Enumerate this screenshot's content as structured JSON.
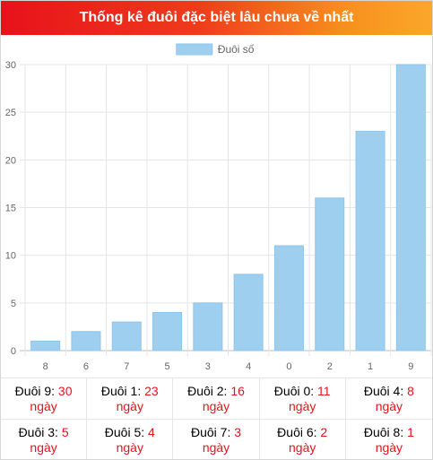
{
  "header": {
    "title": "Thống kê đuôi đặc biệt lâu chưa về nhất"
  },
  "chart_data": {
    "type": "bar",
    "categories": [
      "8",
      "6",
      "7",
      "5",
      "3",
      "4",
      "0",
      "2",
      "1",
      "9"
    ],
    "series": [
      {
        "name": "Đuôi số",
        "values": [
          1,
          2,
          3,
          4,
          5,
          8,
          11,
          16,
          23,
          30
        ]
      }
    ],
    "ylim": [
      0,
      30
    ],
    "yticks": [
      0,
      5,
      10,
      15,
      20,
      25,
      30
    ],
    "grid": true,
    "legend": "top-center",
    "bar_color": "#9fcfef",
    "bar_border_color": "#8ec5ec"
  },
  "stats": {
    "unit": "ngày",
    "items": [
      {
        "label": "Đuôi 9:",
        "value": "30"
      },
      {
        "label": "Đuôi 1:",
        "value": "23"
      },
      {
        "label": "Đuôi 2:",
        "value": "16"
      },
      {
        "label": "Đuôi 0:",
        "value": "11"
      },
      {
        "label": "Đuôi 4:",
        "value": "8"
      },
      {
        "label": "Đuôi 3:",
        "value": "5"
      },
      {
        "label": "Đuôi 5:",
        "value": "4"
      },
      {
        "label": "Đuôi 7:",
        "value": "3"
      },
      {
        "label": "Đuôi 6:",
        "value": "2"
      },
      {
        "label": "Đuôi 8:",
        "value": "1"
      }
    ]
  },
  "colors": {
    "accent_red": "#e8121b",
    "header_start": "#e8121b",
    "header_end": "#fba72a"
  }
}
